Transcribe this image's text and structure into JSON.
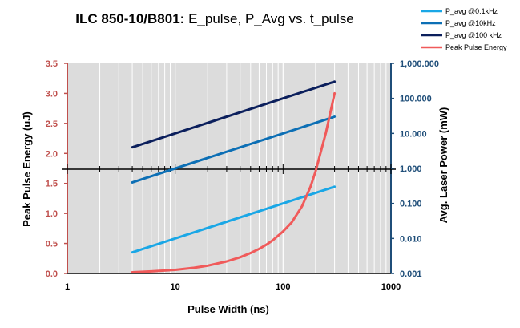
{
  "chart_data": {
    "type": "line",
    "title_bold": "ILC 850-10/B801:",
    "title_rest": " E_pulse, P_Avg vs. t_pulse",
    "xlabel": "Pulse Width (ns)",
    "ylabel_left": "Peak Pulse Energy (uJ)",
    "ylabel_right": "Avg. Laser Power (mW)",
    "x_scale": "log",
    "xlim": [
      1,
      1000
    ],
    "x_ticks": [
      1,
      10,
      100,
      1000
    ],
    "x_tick_labels": [
      "1",
      "10",
      "100",
      "1000"
    ],
    "y_left": {
      "scale": "linear",
      "ylim": [
        0,
        3.5
      ],
      "ticks": [
        0,
        0.5,
        1,
        1.5,
        2,
        2.5,
        3,
        3.5
      ],
      "tick_labels": [
        "0.0",
        "0.5",
        "1.0",
        "1.5",
        "2.0",
        "2.5",
        "3.0",
        "3.5"
      ]
    },
    "y_right": {
      "scale": "log",
      "ylim": [
        0.001,
        1000
      ],
      "ticks": [
        0.001,
        0.01,
        0.1,
        1,
        10,
        100,
        1000
      ],
      "tick_labels": [
        "0.001",
        "0.010",
        "0.100",
        "1.000",
        "10.000",
        "100.000",
        "1,000.000"
      ]
    },
    "grid": {
      "vertical_minor_log": true,
      "horizontal": false
    },
    "legend_position": "top-right",
    "series": [
      {
        "name": "P_avg @0.1kHz",
        "axis": "right",
        "color": "#1aa7e6",
        "x": [
          4,
          300
        ],
        "y": [
          0.004,
          0.3
        ]
      },
      {
        "name": "P_avg @10kHz",
        "axis": "right",
        "color": "#0c6fb5",
        "x": [
          4,
          300
        ],
        "y": [
          0.4,
          30
        ]
      },
      {
        "name": "P_avg @100 kHz",
        "axis": "right",
        "color": "#0b1f5c",
        "x": [
          4,
          300
        ],
        "y": [
          4,
          300
        ]
      },
      {
        "name": "Peak Pulse Energy",
        "axis": "left",
        "color": "#f05a5a",
        "x": [
          4,
          6,
          10,
          15,
          20,
          30,
          40,
          50,
          60,
          70,
          80,
          100,
          120,
          150,
          180,
          200,
          250,
          300
        ],
        "y": [
          0.02,
          0.035,
          0.06,
          0.095,
          0.13,
          0.2,
          0.27,
          0.34,
          0.41,
          0.48,
          0.55,
          0.7,
          0.85,
          1.12,
          1.45,
          1.7,
          2.35,
          3.0
        ]
      }
    ]
  },
  "colors": {
    "plot_bg": "#dcdcdc",
    "left_axis": "#c0504d",
    "right_axis": "#1f4e79",
    "grid": "#ffffff"
  }
}
